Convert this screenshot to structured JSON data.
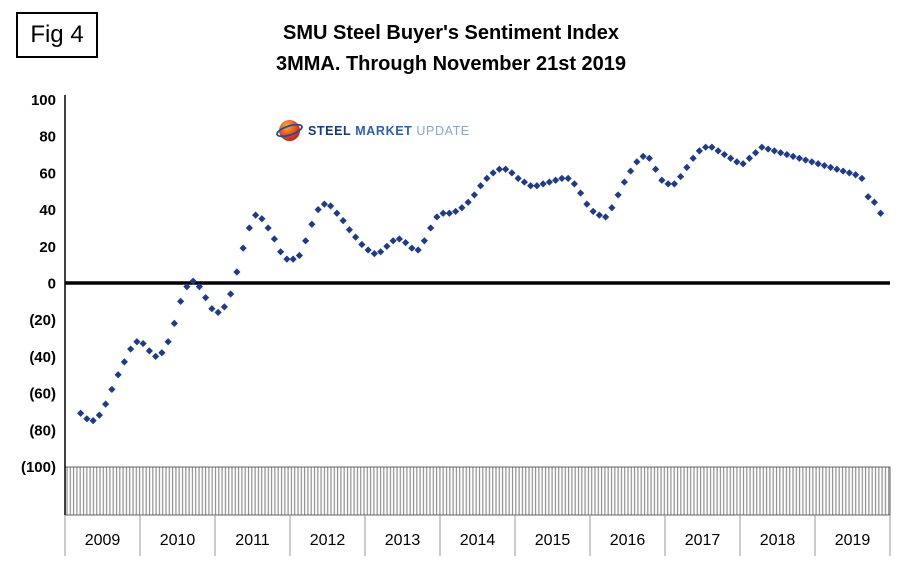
{
  "figure_label": "Fig 4",
  "title": {
    "line1": "SMU Steel Buyer's Sentiment Index",
    "line2": "3MMA. Through November 21st 2019"
  },
  "logo": {
    "steel": "STEEL",
    "market": "MARKET",
    "update": "UPDATE"
  },
  "chart_data": {
    "type": "scatter",
    "marker": "diamond",
    "marker_color": "#1e3a8c",
    "negative_tick_color": "#ff0000",
    "axis_color": "#000000",
    "hatch_color": "#8f8f8f",
    "title": "SMU Steel Buyer's Sentiment Index",
    "subtitle": "3MMA. Through November 21st 2019",
    "ylim": [
      -100,
      100
    ],
    "grid": "off",
    "y_ticks": [
      100,
      80,
      60,
      40,
      20,
      0,
      -20,
      -40,
      -60,
      -80,
      -100
    ],
    "x_years": [
      "2009",
      "2010",
      "2011",
      "2012",
      "2013",
      "2014",
      "2015",
      "2016",
      "2017",
      "2018",
      "2019"
    ],
    "start": "2009-03",
    "end": "2019-11",
    "start_month_offset": 2,
    "values": [
      -71,
      -74,
      -75,
      -72,
      -66,
      -58,
      -50,
      -43,
      -36,
      -32,
      -33,
      -37,
      -40,
      -38,
      -32,
      -22,
      -10,
      -2,
      1,
      -2,
      -8,
      -14,
      -16,
      -13,
      -6,
      6,
      19,
      30,
      37,
      35,
      30,
      24,
      17,
      13,
      13,
      15,
      23,
      32,
      40,
      43,
      42,
      38,
      34,
      29,
      25,
      21,
      18,
      16,
      17,
      20,
      23,
      24,
      22,
      19,
      18,
      23,
      30,
      36,
      38,
      38,
      39,
      41,
      44,
      48,
      53,
      57,
      60,
      62,
      62,
      60,
      57,
      55,
      53,
      53,
      54,
      55,
      56,
      57,
      57,
      54,
      49,
      43,
      39,
      37,
      36,
      41,
      48,
      55,
      61,
      66,
      69,
      68,
      62,
      56,
      54,
      54,
      58,
      63,
      68,
      72,
      74,
      74,
      72,
      70,
      68,
      66,
      65,
      68,
      71,
      74,
      73,
      72,
      71,
      70,
      69,
      68,
      67,
      66,
      65,
      64,
      63,
      62,
      61,
      60,
      59,
      57,
      47,
      44,
      38
    ]
  }
}
